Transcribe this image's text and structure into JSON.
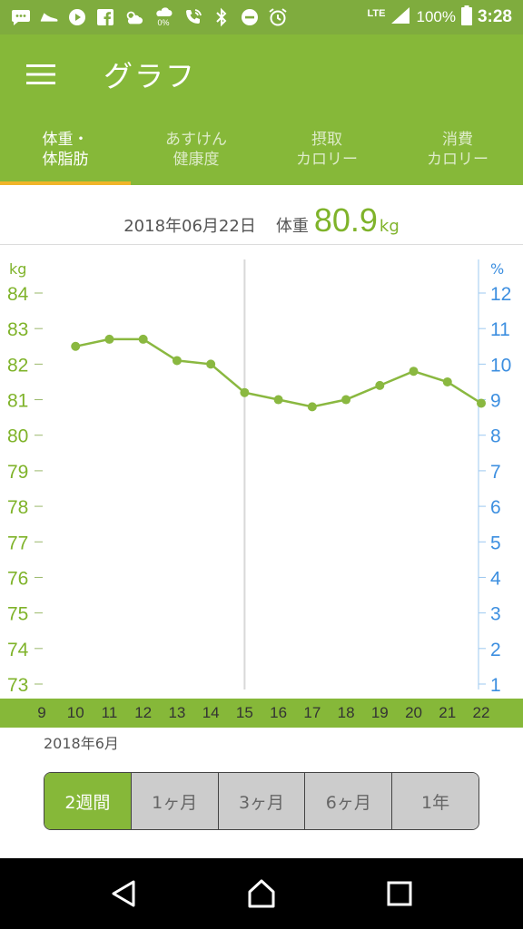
{
  "status_bar": {
    "icons": [
      "message-icon",
      "shoe-icon",
      "play-icon",
      "facebook-icon",
      "weather-icon",
      "rain-icon",
      "wifi-call-icon",
      "bluetooth-icon",
      "dnd-icon",
      "alarm-icon",
      "signal-icon",
      "battery-icon"
    ],
    "rain_percent": "0%",
    "network": "LTE",
    "battery": "100%",
    "time": "3:28"
  },
  "app_bar": {
    "title": "グラフ"
  },
  "tabs": [
    {
      "line1": "体重・",
      "line2": "体脂肪",
      "active": true
    },
    {
      "line1": "あすけん",
      "line2": "健康度",
      "active": false
    },
    {
      "line1": "摂取",
      "line2": "カロリー",
      "active": false
    },
    {
      "line1": "消費",
      "line2": "カロリー",
      "active": false
    }
  ],
  "readout": {
    "date": "2018年06月22日",
    "label": "体重",
    "value": "80.9",
    "unit": "kg"
  },
  "chart_data": {
    "type": "line",
    "xlabel": "",
    "ylabel": "kg",
    "y2label": "%",
    "x_ticks": [
      "9",
      "10",
      "11",
      "12",
      "13",
      "14",
      "15",
      "16",
      "17",
      "18",
      "19",
      "20",
      "21",
      "22"
    ],
    "y_ticks": [
      "84",
      "83",
      "82",
      "81",
      "80",
      "79",
      "78",
      "77",
      "76",
      "75",
      "74",
      "73"
    ],
    "y2_ticks": [
      "12",
      "11",
      "10",
      "9",
      "8",
      "7",
      "6",
      "5",
      "4",
      "3",
      "2",
      "1"
    ],
    "ylim": [
      73,
      84
    ],
    "y2lim": [
      1,
      12
    ],
    "xlim": [
      9,
      22
    ],
    "cursor_x": 15,
    "series": [
      {
        "x": [
          10,
          11,
          12,
          13,
          14,
          15,
          16,
          17,
          18,
          19,
          20,
          21,
          22
        ],
        "values": [
          82.5,
          82.7,
          82.7,
          82.1,
          82.0,
          81.2,
          81.0,
          80.8,
          81.0,
          81.4,
          81.8,
          81.5,
          80.9
        ]
      }
    ],
    "colors": {
      "line": "#8ab840",
      "left_axis": "#7fb32a",
      "right_axis": "#3d8fe0",
      "band": "#86b839"
    }
  },
  "month_label": "2018年6月",
  "period": [
    {
      "label": "2週間",
      "active": true
    },
    {
      "label": "1ヶ月",
      "active": false
    },
    {
      "label": "3ヶ月",
      "active": false
    },
    {
      "label": "6ヶ月",
      "active": false
    },
    {
      "label": "1年",
      "active": false
    }
  ]
}
